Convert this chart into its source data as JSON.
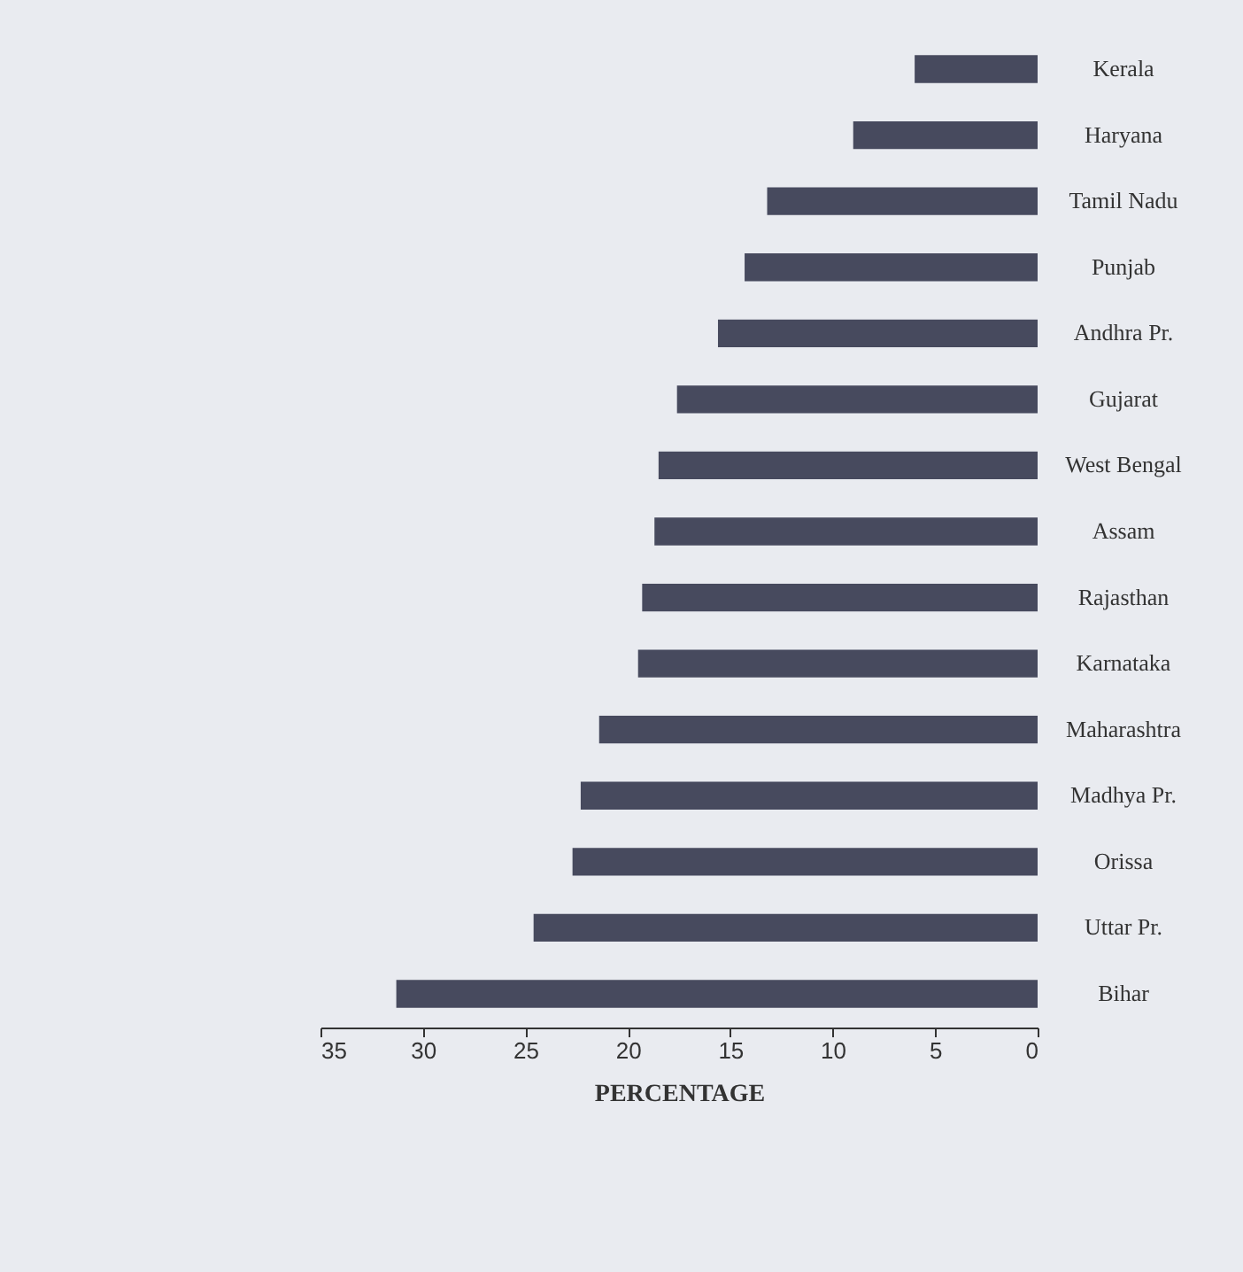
{
  "chart_data": {
    "type": "bar",
    "orientation": "horizontal",
    "xlabel": "PERCENTAGE",
    "categories": [
      "Kerala",
      "Haryana",
      "Tamil Nadu",
      "Punjab",
      "Andhra Pr.",
      "Gujarat",
      "West Bengal",
      "Assam",
      "Rajasthan",
      "Karnataka",
      "Maharashtra",
      "Madhya Pr.",
      "Orissa",
      "Uttar Pr.",
      "Bihar"
    ],
    "values": [
      6.0,
      9.0,
      13.2,
      14.3,
      15.6,
      17.6,
      18.5,
      18.7,
      19.3,
      19.5,
      21.4,
      22.3,
      22.7,
      24.6,
      31.3
    ],
    "color": "#474a5e",
    "xlim": [
      35,
      0
    ],
    "xticks": [
      35,
      30,
      25,
      20,
      15,
      10,
      5,
      0
    ],
    "grid": false
  }
}
